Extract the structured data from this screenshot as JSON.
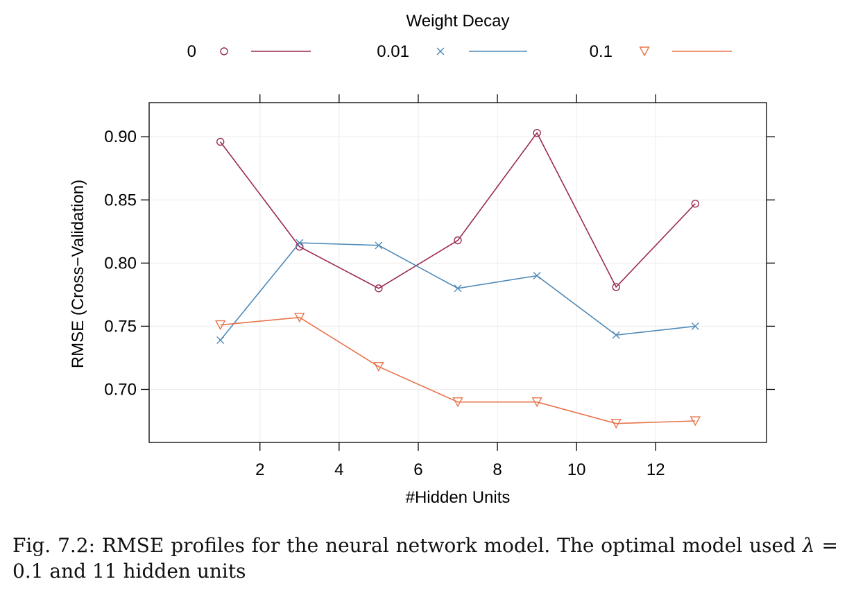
{
  "chart_data": {
    "type": "line",
    "legend_title": "Weight Decay",
    "legend_position": "top",
    "xlabel": "#Hidden Units",
    "ylabel": "RMSE (Cross−Validation)",
    "xlim": [
      -0.8,
      14.8
    ],
    "ylim": [
      0.658,
      0.927
    ],
    "xticks": [
      2,
      4,
      6,
      8,
      10,
      12
    ],
    "yticks": [
      0.7,
      0.75,
      0.8,
      0.85,
      0.9
    ],
    "ytick_labels": [
      "0.70",
      "0.75",
      "0.80",
      "0.85",
      "0.90"
    ],
    "grid": true,
    "x": [
      1,
      3,
      5,
      7,
      9,
      11,
      13
    ],
    "series": [
      {
        "name": "0",
        "marker": "circle",
        "color": "#9b2a52",
        "values": [
          0.896,
          0.813,
          0.78,
          0.818,
          0.903,
          0.781,
          0.847
        ]
      },
      {
        "name": "0.01",
        "marker": "cross",
        "color": "#4f8ab8",
        "values": [
          0.739,
          0.816,
          0.814,
          0.78,
          0.79,
          0.743,
          0.75
        ]
      },
      {
        "name": "0.1",
        "marker": "triangle-down",
        "color": "#e8734a",
        "values": [
          0.751,
          0.757,
          0.718,
          0.69,
          0.69,
          0.673,
          0.675
        ]
      }
    ]
  },
  "caption": {
    "prefix": "Fig. 7.2: RMSE profiles for the neural network model. The optimal model used ",
    "lambda": "λ",
    "suffix": " = 0.1 and 11 hidden units"
  }
}
